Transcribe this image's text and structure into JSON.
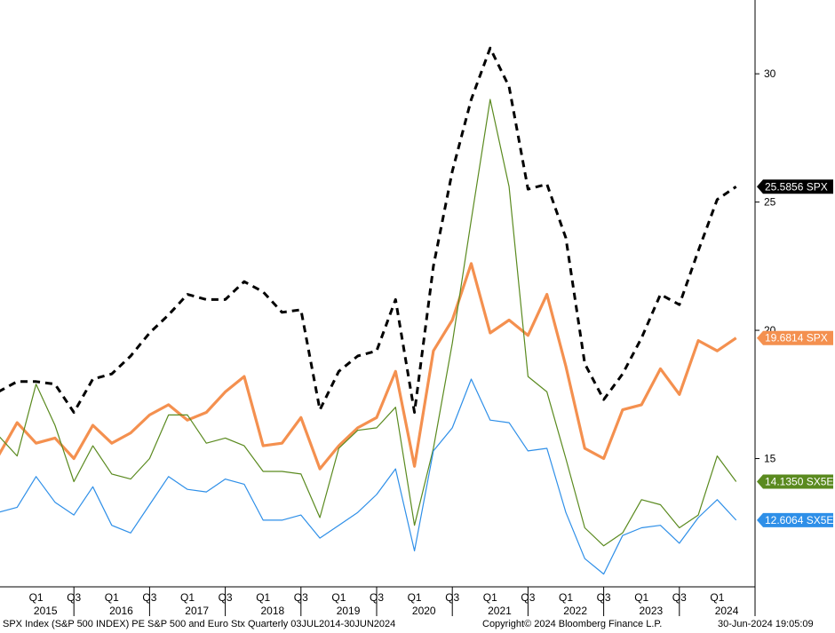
{
  "chart_data": {
    "type": "line",
    "title": "",
    "x": [
      "2014 Q3",
      "2014 Q4",
      "2015 Q1",
      "2015 Q2",
      "2015 Q3",
      "2015 Q4",
      "2016 Q1",
      "2016 Q2",
      "2016 Q3",
      "2016 Q4",
      "2017 Q1",
      "2017 Q2",
      "2017 Q3",
      "2017 Q4",
      "2018 Q1",
      "2018 Q2",
      "2018 Q3",
      "2018 Q4",
      "2019 Q1",
      "2019 Q2",
      "2019 Q3",
      "2019 Q4",
      "2020 Q1",
      "2020 Q2",
      "2020 Q3",
      "2020 Q4",
      "2021 Q1",
      "2021 Q2",
      "2021 Q3",
      "2021 Q4",
      "2022 Q1",
      "2022 Q2",
      "2022 Q3",
      "2022 Q4",
      "2023 Q1",
      "2023 Q2",
      "2023 Q3",
      "2023 Q4",
      "2024 Q1",
      "2024 Q2"
    ],
    "ylim": [
      10,
      32.6
    ],
    "yticks": [
      15,
      20,
      25,
      30
    ],
    "quarter_labels": [
      "Q1",
      "Q3",
      "Q1",
      "Q3",
      "Q1",
      "Q3",
      "Q1",
      "Q3",
      "Q1",
      "Q3",
      "Q1",
      "Q3",
      "Q1",
      "Q3",
      "Q1",
      "Q3",
      "Q1",
      "Q3",
      "Q1"
    ],
    "years": [
      "2015",
      "2016",
      "2017",
      "2018",
      "2019",
      "2020",
      "2021",
      "2022",
      "2023",
      "2024"
    ],
    "grid": false,
    "legend": "right-axis end labels",
    "series": [
      {
        "color": "#000000",
        "style": "dashed",
        "width": 3,
        "values": [
          17.6,
          18.0,
          18.0,
          17.9,
          16.8,
          18.1,
          18.3,
          19.0,
          19.9,
          20.6,
          21.4,
          21.2,
          21.2,
          21.9,
          21.5,
          20.7,
          20.8,
          16.9,
          18.4,
          19.0,
          19.2,
          21.2,
          16.8,
          22.5,
          26.2,
          29.0,
          31.0,
          29.5,
          25.5,
          25.7,
          23.6,
          18.7,
          17.3,
          18.3,
          19.7,
          21.4,
          21.0,
          23.1,
          25.1,
          25.6
        ],
        "label": "25.5856 SPX",
        "label_color": "#000000"
      },
      {
        "color": "#f4904f",
        "style": "solid",
        "width": 3.2,
        "values": [
          15.1,
          16.4,
          15.6,
          15.8,
          15.0,
          16.3,
          15.6,
          16.0,
          16.7,
          17.1,
          16.5,
          16.8,
          17.6,
          18.2,
          15.5,
          15.6,
          16.6,
          14.6,
          15.5,
          16.2,
          16.6,
          18.4,
          14.7,
          19.2,
          20.4,
          22.6,
          19.9,
          20.4,
          19.8,
          21.4,
          18.6,
          15.4,
          15.0,
          16.9,
          17.1,
          18.5,
          17.5,
          19.6,
          19.2,
          19.7
        ],
        "label": "19.6814 SPX",
        "label_color": "#f4904f"
      },
      {
        "color": "#5a8a1f",
        "style": "solid",
        "width": 1.2,
        "values": [
          15.9,
          15.1,
          17.9,
          16.3,
          14.1,
          15.5,
          14.4,
          14.2,
          15.0,
          16.7,
          16.7,
          15.6,
          15.8,
          15.5,
          14.5,
          14.5,
          14.4,
          12.7,
          15.4,
          16.1,
          16.2,
          17.0,
          12.4,
          15.4,
          19.5,
          24.3,
          29.0,
          25.6,
          18.2,
          17.6,
          15.0,
          12.3,
          11.6,
          12.1,
          13.4,
          13.2,
          12.3,
          12.8,
          15.1,
          14.1
        ],
        "label": "14.1350 SX5E",
        "label_color": "#5a8a1f"
      },
      {
        "color": "#2e8fe8",
        "style": "solid",
        "width": 1.2,
        "values": [
          12.9,
          13.1,
          14.3,
          13.3,
          12.8,
          13.9,
          12.4,
          12.1,
          13.2,
          14.3,
          13.8,
          13.7,
          14.2,
          14.0,
          12.6,
          12.6,
          12.8,
          11.9,
          12.4,
          12.9,
          13.6,
          14.6,
          11.4,
          15.3,
          16.2,
          18.1,
          16.5,
          16.4,
          15.3,
          15.4,
          12.9,
          11.1,
          10.5,
          12.0,
          12.3,
          12.4,
          11.7,
          12.7,
          13.4,
          12.6
        ],
        "label": "12.6064 SX5E",
        "label_color": "#2e8fe8"
      }
    ]
  },
  "footer": {
    "source": "SPX Index (S&P 500 INDEX) PE S&P 500 and Euro Stx  Quarterly 03JUL2014-30JUN2024",
    "copyright": "Copyright© 2024 Bloomberg Finance L.P.",
    "timestamp": "30-Jun-2024 19:05:09"
  }
}
